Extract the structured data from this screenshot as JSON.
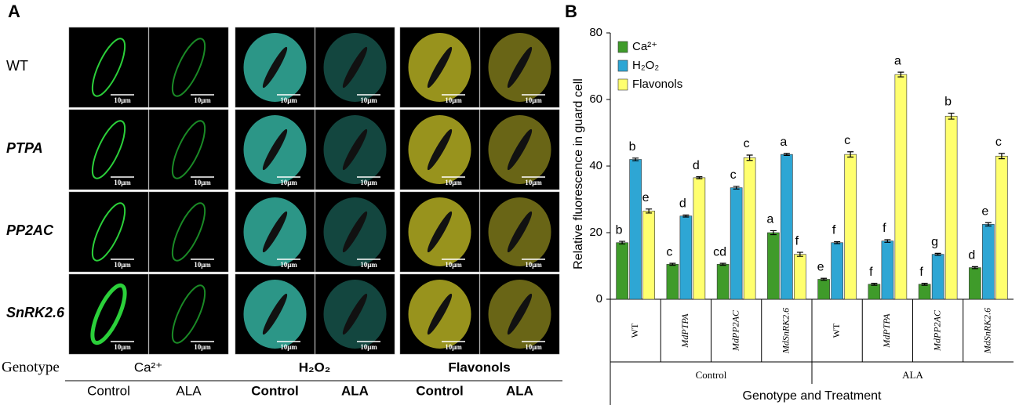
{
  "panel_a": {
    "label": "A",
    "rows": [
      "WT",
      "PTPA",
      "PP2AC",
      "SnRK2.6"
    ],
    "scale_bar": "10μm",
    "row_header": "Genotype",
    "columns": [
      {
        "name": "Ca²⁺",
        "conditions": [
          "Control",
          "ALA"
        ]
      },
      {
        "name": "H₂O₂",
        "conditions": [
          "Control",
          "ALA"
        ]
      },
      {
        "name": "Flavonols",
        "conditions": [
          "Control",
          "ALA"
        ]
      }
    ]
  },
  "chart_data": {
    "type": "bar",
    "panel_label": "B",
    "y_label": "Relative fluorescence in guard  cell",
    "x_label": "Genotype and Treatment",
    "categories": [
      "WT",
      "MdPTPA",
      "MdPP2AC",
      "MdSnRK2.6",
      "WT",
      "MdPTPA",
      "MdPP2AC",
      "MdSnRK2.6"
    ],
    "groups": [
      {
        "name": "Control",
        "size": 4
      },
      {
        "name": "ALA",
        "size": 4
      }
    ],
    "series": [
      {
        "name": "Ca²⁺",
        "color": "#3f9b2a",
        "values": [
          17,
          10.5,
          10.5,
          20,
          6,
          4.5,
          4.5,
          9.5
        ],
        "errors": [
          0.4,
          0.3,
          0.3,
          0.6,
          0.3,
          0.3,
          0.3,
          0.3
        ],
        "value_labels": [
          "b",
          "c",
          "cd",
          "a",
          "e",
          "f",
          "f",
          "d"
        ]
      },
      {
        "name": "H₂O₂",
        "color": "#2ea6d4",
        "values": [
          42,
          25,
          33.5,
          43.5,
          17,
          17.5,
          13.5,
          22.5
        ],
        "errors": [
          0.4,
          0.3,
          0.4,
          0.3,
          0.3,
          0.4,
          0.3,
          0.5
        ],
        "value_labels": [
          "b",
          "d",
          "c",
          "a",
          "f",
          "f",
          "g",
          "e"
        ]
      },
      {
        "name": "Flavonols",
        "color": "#ffff6e",
        "values": [
          26.5,
          36.5,
          42.5,
          13.5,
          43.5,
          67.5,
          55,
          43
        ],
        "errors": [
          0.6,
          0.3,
          0.8,
          0.6,
          0.8,
          0.7,
          0.9,
          0.8
        ],
        "value_labels": [
          "e",
          "d",
          "c",
          "f",
          "c",
          "a",
          "b",
          "c"
        ]
      }
    ],
    "ylim": [
      0,
      80
    ],
    "yticks": [
      0,
      20,
      40,
      60,
      80
    ],
    "legend": "upper-left"
  }
}
